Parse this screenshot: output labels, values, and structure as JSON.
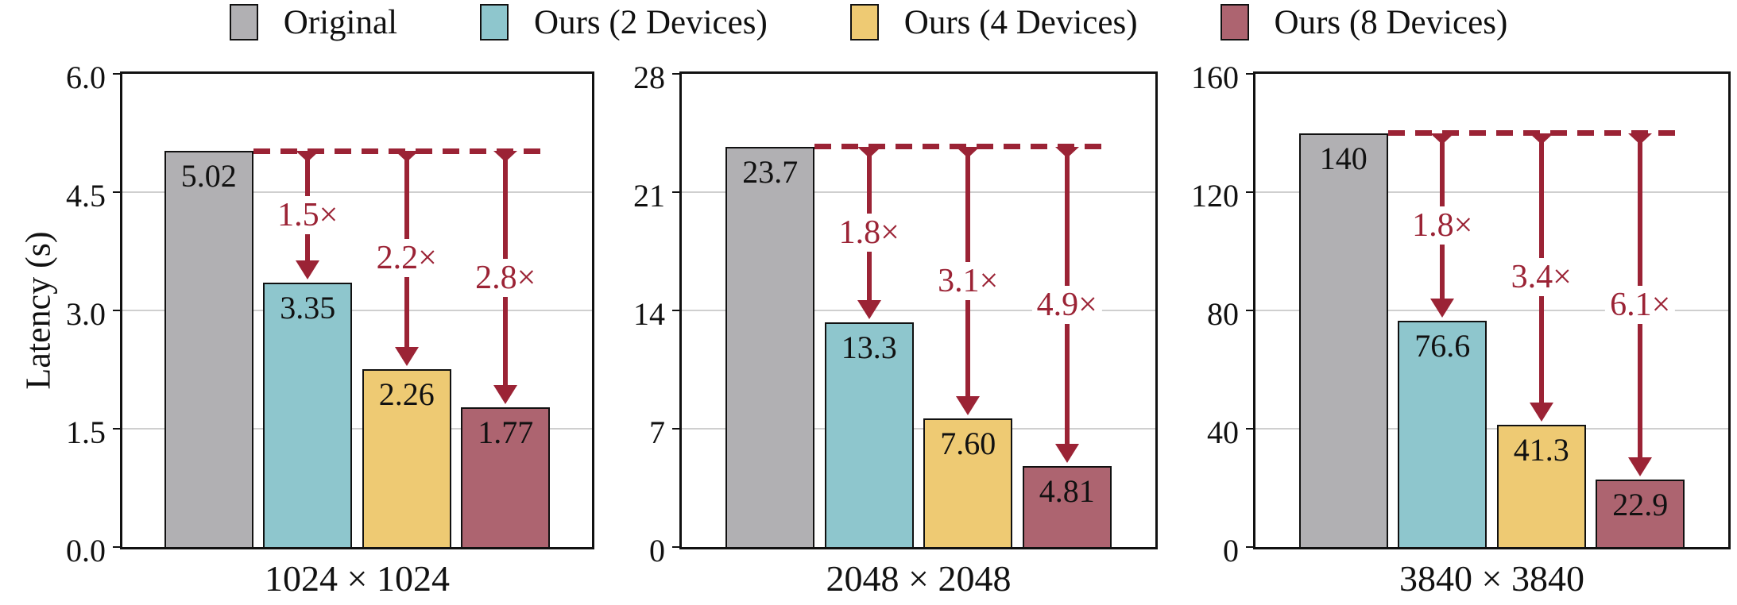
{
  "ylabel": "Latency (s)",
  "legend": {
    "items": [
      {
        "label": "Original",
        "color": "#b1b0b3"
      },
      {
        "label": "Ours (2 Devices)",
        "color": "#8ec6cd"
      },
      {
        "label": "Ours (4 Devices)",
        "color": "#eeca73"
      },
      {
        "label": "Ours (8 Devices)",
        "color": "#ad6470"
      }
    ]
  },
  "colors": {
    "arrow": "#9b2335",
    "grid": "#cfcfcf",
    "spine": "#111111",
    "background": "#ffffff"
  },
  "chart_data": [
    {
      "type": "bar",
      "title": "1024 × 1024",
      "xlabel": "1024 × 1024",
      "ylabel": "Latency (s)",
      "categories": [
        "Original",
        "Ours (2 Devices)",
        "Ours (4 Devices)",
        "Ours (8 Devices)"
      ],
      "values": [
        5.02,
        3.35,
        2.26,
        1.77
      ],
      "value_labels": [
        "5.02",
        "3.35",
        "2.26",
        "1.77"
      ],
      "speedups": [
        "1.5×",
        "2.2×",
        "2.8×"
      ],
      "ylim": [
        0,
        6
      ],
      "yticks": [
        0.0,
        1.5,
        3.0,
        4.5,
        6.0
      ],
      "ytick_labels": [
        "0.0",
        "1.5",
        "3.0",
        "4.5",
        "6.0"
      ],
      "grid": true,
      "legend_position": "top"
    },
    {
      "type": "bar",
      "title": "2048 × 2048",
      "xlabel": "2048 × 2048",
      "ylabel": "Latency (s)",
      "categories": [
        "Original",
        "Ours (2 Devices)",
        "Ours (4 Devices)",
        "Ours (8 Devices)"
      ],
      "values": [
        23.7,
        13.3,
        7.6,
        4.81
      ],
      "value_labels": [
        "23.7",
        "13.3",
        "7.60",
        "4.81"
      ],
      "speedups": [
        "1.8×",
        "3.1×",
        "4.9×"
      ],
      "ylim": [
        0,
        28
      ],
      "yticks": [
        0,
        7,
        14,
        21,
        28
      ],
      "ytick_labels": [
        "0",
        "7",
        "14",
        "21",
        "28"
      ],
      "grid": true,
      "legend_position": "top"
    },
    {
      "type": "bar",
      "title": "3840 × 3840",
      "xlabel": "3840 × 3840",
      "ylabel": "Latency (s)",
      "categories": [
        "Original",
        "Ours (2 Devices)",
        "Ours (4 Devices)",
        "Ours (8 Devices)"
      ],
      "values": [
        140,
        76.6,
        41.3,
        22.9
      ],
      "value_labels": [
        "140",
        "76.6",
        "41.3",
        "22.9"
      ],
      "speedups": [
        "1.8×",
        "3.4×",
        "6.1×"
      ],
      "ylim": [
        0,
        160
      ],
      "yticks": [
        0,
        40,
        80,
        120,
        160
      ],
      "ytick_labels": [
        "0",
        "40",
        "80",
        "120",
        "160"
      ],
      "grid": true,
      "legend_position": "top"
    }
  ]
}
